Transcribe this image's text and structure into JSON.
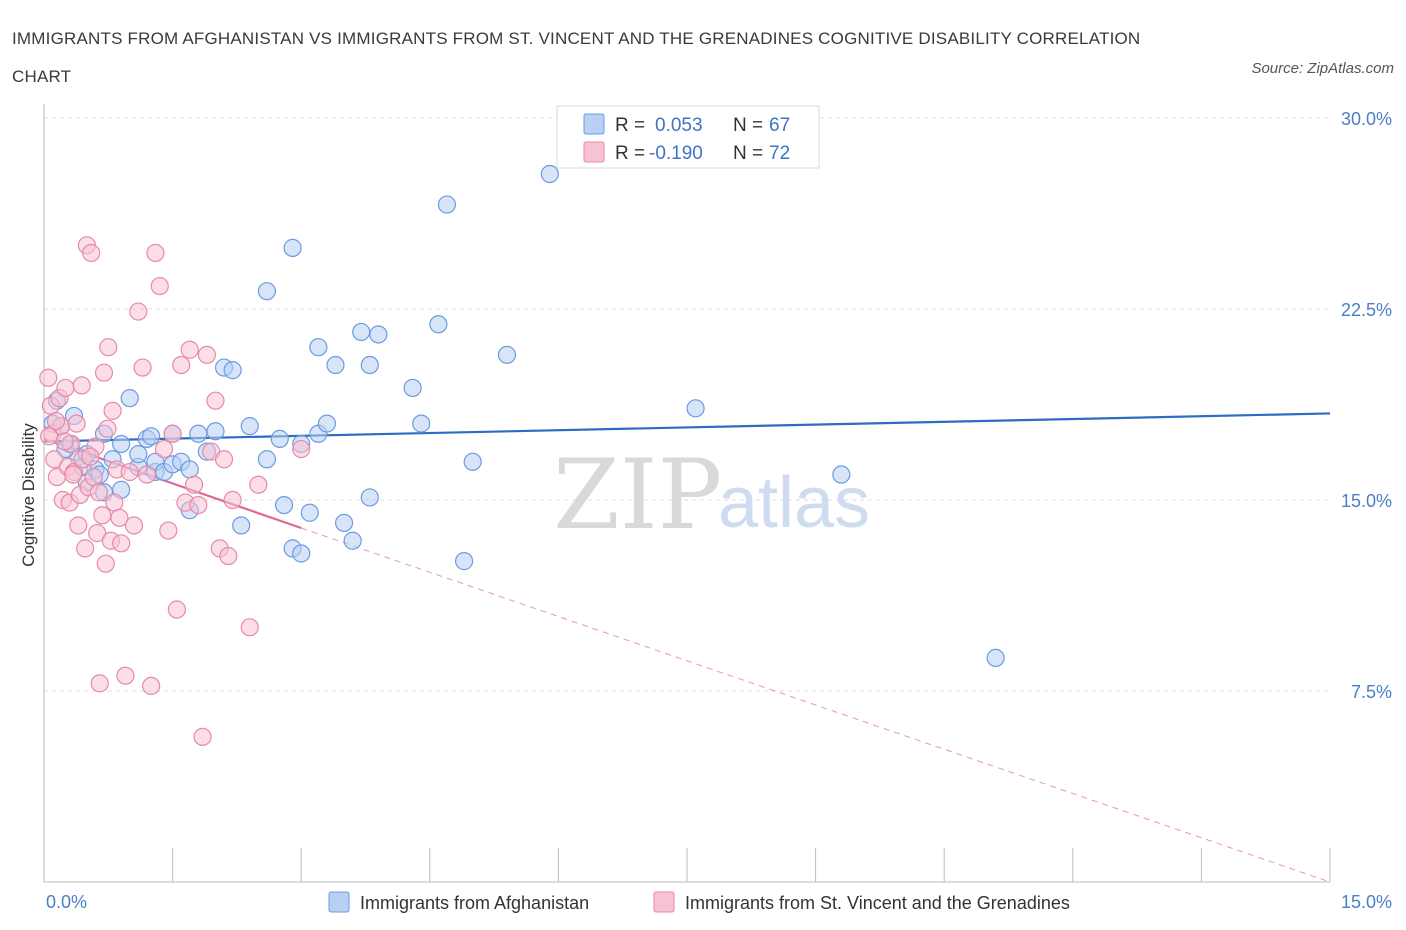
{
  "title": "IMMIGRANTS FROM AFGHANISTAN VS IMMIGRANTS FROM ST. VINCENT AND THE GRENADINES COGNITIVE DISABILITY CORRELATION CHART",
  "source": "Source: ZipAtlas.com",
  "watermark": {
    "zip": "ZIP",
    "atlas": "atlas"
  },
  "colors": {
    "blue": "#6b9be0",
    "blue_fill": "#b8d0f4",
    "pink": "#e889a8",
    "pink_fill": "#f7c3d3",
    "blue_line": "#2b6cc4",
    "pink_line": "#e0679a"
  },
  "legend": {
    "series1": {
      "r_label": "R =",
      "r_value": "0.053",
      "n_label": "N =",
      "n_value": "67"
    },
    "series2": {
      "r_label": "R =",
      "r_value": "-0.190",
      "n_label": "N =",
      "n_value": "72"
    }
  },
  "bottom_legend": [
    "Immigrants from Afghanistan",
    "Immigrants from St. Vincent and the Grenadines"
  ],
  "chart_data": {
    "type": "scatter",
    "ylabel": "Cognitive Disability",
    "xlim": [
      0,
      15
    ],
    "ylim": [
      0,
      30
    ],
    "x_tick_labels": [
      {
        "value": 0,
        "label": "0.0%"
      },
      {
        "value": 15,
        "label": "15.0%"
      }
    ],
    "y_tick_labels": [
      {
        "value": 7.5,
        "label": "7.5%"
      },
      {
        "value": 15,
        "label": "15.0%"
      },
      {
        "value": 22.5,
        "label": "22.5%"
      },
      {
        "value": 30,
        "label": "30.0%"
      }
    ],
    "grid": true,
    "series": [
      {
        "name": "Immigrants from Afghanistan",
        "trend": {
          "x": [
            0,
            15
          ],
          "y": [
            17.3,
            18.4
          ],
          "style": "solid"
        },
        "points": [
          [
            0.1,
            18.0
          ],
          [
            0.2,
            17.9
          ],
          [
            0.3,
            17.2
          ],
          [
            0.4,
            16.7
          ],
          [
            0.5,
            15.7
          ],
          [
            0.5,
            16.8
          ],
          [
            0.6,
            16.2
          ],
          [
            0.7,
            15.3
          ],
          [
            0.7,
            17.6
          ],
          [
            0.8,
            16.6
          ],
          [
            0.9,
            15.4
          ],
          [
            0.9,
            17.2
          ],
          [
            1.0,
            19.0
          ],
          [
            1.1,
            16.3
          ],
          [
            1.1,
            16.8
          ],
          [
            1.2,
            17.4
          ],
          [
            1.3,
            16.1
          ],
          [
            1.3,
            16.5
          ],
          [
            1.4,
            16.1
          ],
          [
            1.5,
            16.4
          ],
          [
            1.5,
            17.6
          ],
          [
            1.6,
            16.5
          ],
          [
            1.7,
            14.6
          ],
          [
            1.7,
            16.2
          ],
          [
            1.8,
            17.6
          ],
          [
            1.9,
            16.9
          ],
          [
            2.0,
            17.7
          ],
          [
            2.1,
            20.2
          ],
          [
            2.2,
            20.1
          ],
          [
            2.3,
            14.0
          ],
          [
            2.4,
            17.9
          ],
          [
            2.6,
            16.6
          ],
          [
            2.6,
            23.2
          ],
          [
            2.8,
            14.8
          ],
          [
            2.9,
            13.1
          ],
          [
            2.9,
            24.9
          ],
          [
            3.0,
            12.9
          ],
          [
            3.0,
            17.2
          ],
          [
            3.1,
            14.5
          ],
          [
            3.2,
            17.6
          ],
          [
            3.2,
            21.0
          ],
          [
            3.3,
            18.0
          ],
          [
            3.4,
            20.3
          ],
          [
            3.5,
            14.1
          ],
          [
            3.6,
            13.4
          ],
          [
            3.7,
            21.6
          ],
          [
            3.8,
            15.1
          ],
          [
            3.8,
            20.3
          ],
          [
            3.9,
            21.5
          ],
          [
            4.3,
            19.4
          ],
          [
            4.4,
            18.0
          ],
          [
            4.6,
            21.9
          ],
          [
            4.7,
            26.6
          ],
          [
            4.9,
            12.6
          ],
          [
            5.0,
            16.5
          ],
          [
            5.4,
            20.7
          ],
          [
            5.9,
            27.8
          ],
          [
            7.6,
            18.6
          ],
          [
            9.3,
            16.0
          ],
          [
            11.1,
            8.8
          ],
          [
            0.15,
            18.9
          ],
          [
            0.25,
            17.0
          ],
          [
            0.35,
            18.3
          ],
          [
            0.45,
            16.3
          ],
          [
            0.65,
            16.0
          ],
          [
            1.25,
            17.5
          ],
          [
            2.75,
            17.4
          ]
        ]
      },
      {
        "name": "Immigrants from St. Vincent and the Grenadines",
        "trend": {
          "x": [
            0,
            3.0
          ],
          "y": [
            17.4,
            13.9
          ],
          "style": "solid",
          "extension": {
            "x": [
              3.0,
              15
            ],
            "y": [
              13.9,
              0.0
            ],
            "style": "dashed"
          }
        },
        "points": [
          [
            0.05,
            19.8
          ],
          [
            0.08,
            18.7
          ],
          [
            0.1,
            17.6
          ],
          [
            0.12,
            16.6
          ],
          [
            0.15,
            15.9
          ],
          [
            0.18,
            19.0
          ],
          [
            0.2,
            17.9
          ],
          [
            0.22,
            15.0
          ],
          [
            0.25,
            19.4
          ],
          [
            0.28,
            16.3
          ],
          [
            0.3,
            14.9
          ],
          [
            0.32,
            17.2
          ],
          [
            0.35,
            16.1
          ],
          [
            0.38,
            18.0
          ],
          [
            0.4,
            14.0
          ],
          [
            0.42,
            15.2
          ],
          [
            0.45,
            16.6
          ],
          [
            0.48,
            13.1
          ],
          [
            0.5,
            25.0
          ],
          [
            0.52,
            15.5
          ],
          [
            0.55,
            24.7
          ],
          [
            0.58,
            15.9
          ],
          [
            0.6,
            17.1
          ],
          [
            0.62,
            13.7
          ],
          [
            0.65,
            7.8
          ],
          [
            0.68,
            14.4
          ],
          [
            0.7,
            20.0
          ],
          [
            0.72,
            12.5
          ],
          [
            0.75,
            21.0
          ],
          [
            0.78,
            13.4
          ],
          [
            0.8,
            18.5
          ],
          [
            0.82,
            14.9
          ],
          [
            0.85,
            16.2
          ],
          [
            0.88,
            14.3
          ],
          [
            0.9,
            13.3
          ],
          [
            0.95,
            8.1
          ],
          [
            1.0,
            16.1
          ],
          [
            1.05,
            14.0
          ],
          [
            1.1,
            22.4
          ],
          [
            1.15,
            20.2
          ],
          [
            1.2,
            16.0
          ],
          [
            1.25,
            7.7
          ],
          [
            1.3,
            24.7
          ],
          [
            1.35,
            23.4
          ],
          [
            1.4,
            17.0
          ],
          [
            1.45,
            13.8
          ],
          [
            1.5,
            17.6
          ],
          [
            1.55,
            10.7
          ],
          [
            1.6,
            20.3
          ],
          [
            1.65,
            14.9
          ],
          [
            1.7,
            20.9
          ],
          [
            1.75,
            15.6
          ],
          [
            1.8,
            14.8
          ],
          [
            1.85,
            5.7
          ],
          [
            1.9,
            20.7
          ],
          [
            1.95,
            16.9
          ],
          [
            2.0,
            18.9
          ],
          [
            2.05,
            13.1
          ],
          [
            2.1,
            16.6
          ],
          [
            2.15,
            12.8
          ],
          [
            2.2,
            15.0
          ],
          [
            2.4,
            10.0
          ],
          [
            2.5,
            15.6
          ],
          [
            3.0,
            17.0
          ],
          [
            0.06,
            17.5
          ],
          [
            0.14,
            18.1
          ],
          [
            0.24,
            17.3
          ],
          [
            0.34,
            16.0
          ],
          [
            0.44,
            19.5
          ],
          [
            0.54,
            16.7
          ],
          [
            0.64,
            15.3
          ],
          [
            0.74,
            17.8
          ]
        ]
      }
    ]
  }
}
